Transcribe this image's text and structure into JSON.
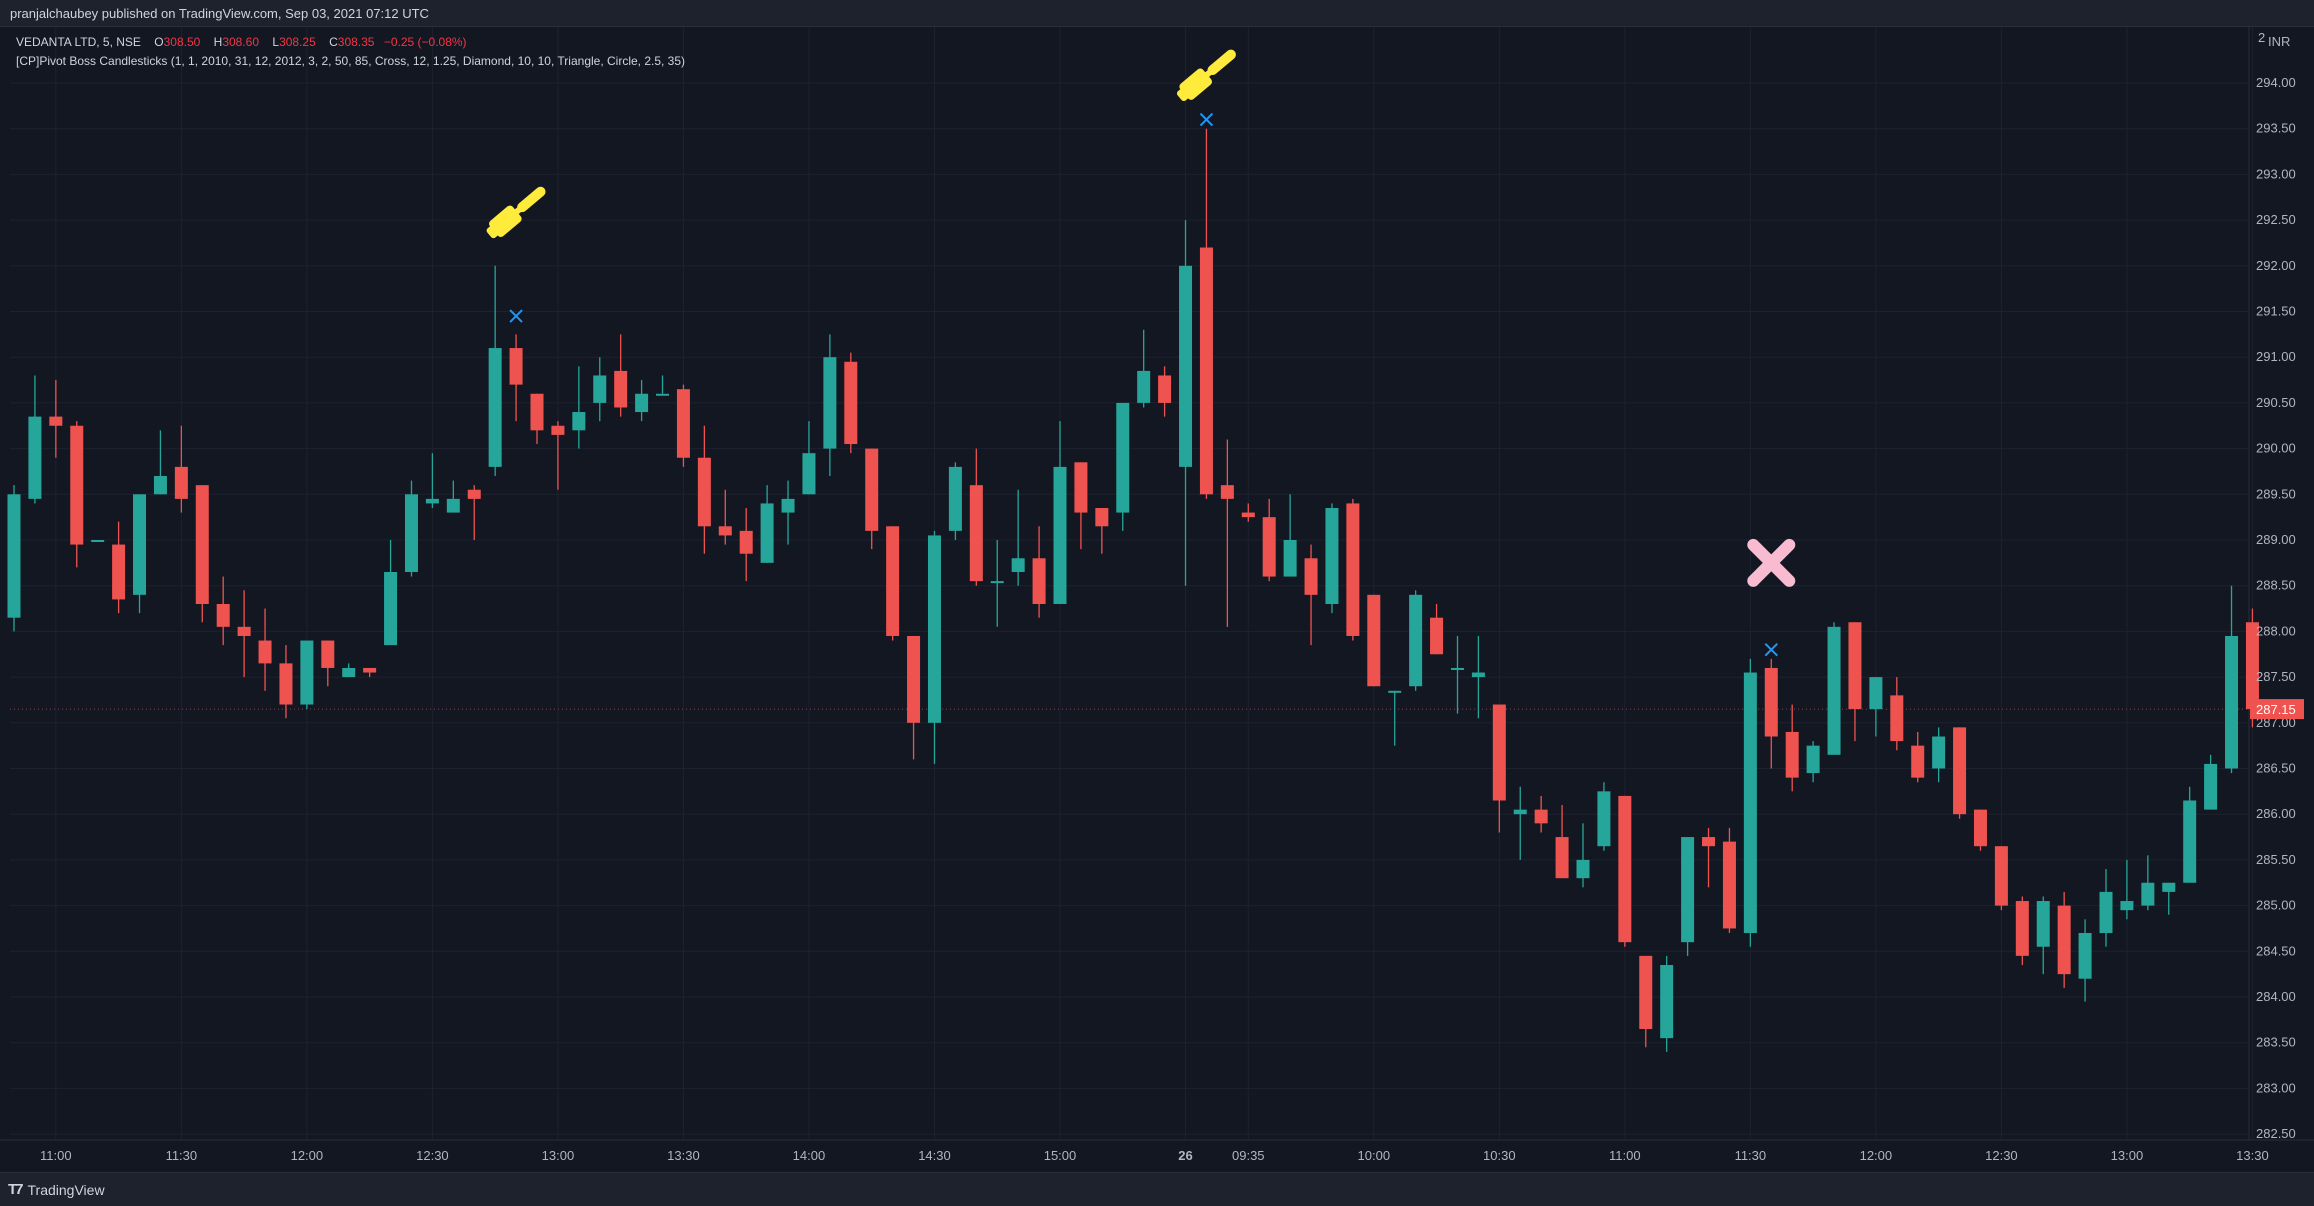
{
  "header": {
    "published_by": "pranjalchaubey published on TradingView.com, Sep 03, 2021 07:12 UTC"
  },
  "legend": {
    "symbol": "VEDANTA LTD, 5, NSE",
    "o_label": "O",
    "o_value": "308.50",
    "h_label": "H",
    "h_value": "308.60",
    "l_label": "L",
    "l_value": "308.25",
    "c_label": "C",
    "c_value": "308.35",
    "change": "−0.25 (−0.08%)",
    "indicator": "[CP]Pivot Boss Candlesticks (1, 1, 2010, 31, 12, 2012, 3, 2, 50, 85, Cross, 12, 1.25, Diamond, 10, 10, Triangle, Circle, 2.5, 35)"
  },
  "footer": {
    "brand": "TradingView"
  },
  "colors": {
    "background": "#131722",
    "grid": "#1e2230",
    "up": "#26a69a",
    "down": "#ef5350",
    "cross_marker": "#2196f3",
    "hammer": "#ffeb3b",
    "x_mark": "#f8bbd0",
    "price_tag": "#ef5350"
  },
  "chart_data": {
    "type": "candlestick",
    "currency": "INR",
    "currency_partial_top": "2",
    "last_price_label": "287.15",
    "last_price": 287.15,
    "y_ticks": [
      "294.00",
      "293.50",
      "293.00",
      "292.50",
      "292.00",
      "291.50",
      "291.00",
      "290.50",
      "290.00",
      "289.50",
      "289.00",
      "288.50",
      "288.00",
      "287.50",
      "287.00",
      "286.50",
      "286.00",
      "285.50",
      "285.00",
      "284.50",
      "284.00",
      "283.50",
      "283.00",
      "282.50"
    ],
    "ylim": [
      282.45,
      294.55
    ],
    "x_ticks": [
      {
        "label": "11:00",
        "index": 2
      },
      {
        "label": "11:30",
        "index": 8
      },
      {
        "label": "12:00",
        "index": 14
      },
      {
        "label": "12:30",
        "index": 20
      },
      {
        "label": "13:00",
        "index": 26
      },
      {
        "label": "13:30",
        "index": 32
      },
      {
        "label": "14:00",
        "index": 38
      },
      {
        "label": "14:30",
        "index": 44
      },
      {
        "label": "15:00",
        "index": 50
      },
      {
        "label": "26",
        "index": 56,
        "bold": true
      },
      {
        "label": "09:35",
        "index": 59
      },
      {
        "label": "10:00",
        "index": 65
      },
      {
        "label": "10:30",
        "index": 71
      },
      {
        "label": "11:00",
        "index": 77
      },
      {
        "label": "11:30",
        "index": 83
      },
      {
        "label": "12:00",
        "index": 89
      },
      {
        "label": "12:30",
        "index": 95
      },
      {
        "label": "13:00",
        "index": 101
      },
      {
        "label": "13:30",
        "index": 107
      }
    ],
    "candles": [
      {
        "o": 288.15,
        "h": 289.6,
        "l": 288.0,
        "c": 289.5
      },
      {
        "o": 289.45,
        "h": 290.8,
        "l": 289.4,
        "c": 290.35
      },
      {
        "o": 290.35,
        "h": 290.75,
        "l": 289.9,
        "c": 290.25
      },
      {
        "o": 290.25,
        "h": 290.3,
        "l": 288.7,
        "c": 288.95
      },
      {
        "o": 289.0,
        "h": 289.0,
        "l": 289.0,
        "c": 289.0
      },
      {
        "o": 288.95,
        "h": 289.2,
        "l": 288.2,
        "c": 288.35
      },
      {
        "o": 288.4,
        "h": 289.5,
        "l": 288.2,
        "c": 289.5
      },
      {
        "o": 289.5,
        "h": 290.2,
        "l": 289.5,
        "c": 289.7
      },
      {
        "o": 289.8,
        "h": 290.25,
        "l": 289.3,
        "c": 289.45
      },
      {
        "o": 289.6,
        "h": 289.6,
        "l": 288.1,
        "c": 288.3
      },
      {
        "o": 288.3,
        "h": 288.6,
        "l": 287.85,
        "c": 288.05
      },
      {
        "o": 288.05,
        "h": 288.45,
        "l": 287.5,
        "c": 287.95
      },
      {
        "o": 287.9,
        "h": 288.25,
        "l": 287.35,
        "c": 287.65
      },
      {
        "o": 287.65,
        "h": 287.85,
        "l": 287.05,
        "c": 287.2
      },
      {
        "o": 287.2,
        "h": 287.9,
        "l": 287.15,
        "c": 287.9
      },
      {
        "o": 287.9,
        "h": 287.9,
        "l": 287.4,
        "c": 287.6
      },
      {
        "o": 287.5,
        "h": 287.65,
        "l": 287.5,
        "c": 287.6
      },
      {
        "o": 287.6,
        "h": 287.6,
        "l": 287.5,
        "c": 287.55
      },
      {
        "o": 287.85,
        "h": 289.0,
        "l": 287.85,
        "c": 288.65
      },
      {
        "o": 288.65,
        "h": 289.65,
        "l": 288.6,
        "c": 289.5
      },
      {
        "o": 289.4,
        "h": 289.95,
        "l": 289.35,
        "c": 289.45
      },
      {
        "o": 289.3,
        "h": 289.65,
        "l": 289.3,
        "c": 289.45
      },
      {
        "o": 289.55,
        "h": 289.6,
        "l": 289.0,
        "c": 289.45
      },
      {
        "o": 289.8,
        "h": 292.0,
        "l": 289.7,
        "c": 291.1
      },
      {
        "o": 291.1,
        "h": 291.25,
        "l": 290.3,
        "c": 290.7
      },
      {
        "o": 290.6,
        "h": 290.6,
        "l": 290.05,
        "c": 290.2
      },
      {
        "o": 290.25,
        "h": 290.3,
        "l": 289.55,
        "c": 290.15
      },
      {
        "o": 290.2,
        "h": 290.9,
        "l": 290.0,
        "c": 290.4
      },
      {
        "o": 290.5,
        "h": 291.0,
        "l": 290.3,
        "c": 290.8
      },
      {
        "o": 290.85,
        "h": 291.25,
        "l": 290.35,
        "c": 290.45
      },
      {
        "o": 290.4,
        "h": 290.75,
        "l": 290.3,
        "c": 290.6
      },
      {
        "o": 290.6,
        "h": 290.8,
        "l": 290.6,
        "c": 290.6
      },
      {
        "o": 290.65,
        "h": 290.7,
        "l": 289.8,
        "c": 289.9
      },
      {
        "o": 289.9,
        "h": 290.25,
        "l": 288.85,
        "c": 289.15
      },
      {
        "o": 289.15,
        "h": 289.55,
        "l": 288.95,
        "c": 289.05
      },
      {
        "o": 289.1,
        "h": 289.35,
        "l": 288.55,
        "c": 288.85
      },
      {
        "o": 288.75,
        "h": 289.6,
        "l": 288.75,
        "c": 289.4
      },
      {
        "o": 289.3,
        "h": 289.65,
        "l": 288.95,
        "c": 289.45
      },
      {
        "o": 289.5,
        "h": 290.3,
        "l": 289.5,
        "c": 289.95
      },
      {
        "o": 290.0,
        "h": 291.25,
        "l": 289.7,
        "c": 291.0
      },
      {
        "o": 290.95,
        "h": 291.05,
        "l": 289.95,
        "c": 290.05
      },
      {
        "o": 290.0,
        "h": 290.0,
        "l": 288.9,
        "c": 289.1
      },
      {
        "o": 289.15,
        "h": 289.15,
        "l": 287.9,
        "c": 287.95
      },
      {
        "o": 287.95,
        "h": 287.95,
        "l": 286.6,
        "c": 287.0
      },
      {
        "o": 287.0,
        "h": 289.1,
        "l": 286.55,
        "c": 289.05
      },
      {
        "o": 289.1,
        "h": 289.85,
        "l": 289.0,
        "c": 289.8
      },
      {
        "o": 289.6,
        "h": 290.0,
        "l": 288.5,
        "c": 288.55
      },
      {
        "o": 288.55,
        "h": 289.0,
        "l": 288.05,
        "c": 288.55
      },
      {
        "o": 288.65,
        "h": 289.55,
        "l": 288.5,
        "c": 288.8
      },
      {
        "o": 288.8,
        "h": 289.15,
        "l": 288.15,
        "c": 288.3
      },
      {
        "o": 288.3,
        "h": 290.3,
        "l": 288.3,
        "c": 289.8
      },
      {
        "o": 289.85,
        "h": 289.85,
        "l": 288.9,
        "c": 289.3
      },
      {
        "o": 289.35,
        "h": 289.35,
        "l": 288.85,
        "c": 289.15
      },
      {
        "o": 289.3,
        "h": 290.5,
        "l": 289.1,
        "c": 290.5
      },
      {
        "o": 290.5,
        "h": 291.3,
        "l": 290.45,
        "c": 290.85
      },
      {
        "o": 290.8,
        "h": 290.9,
        "l": 290.35,
        "c": 290.5
      },
      {
        "o": 289.8,
        "h": 292.5,
        "l": 288.5,
        "c": 292.0
      },
      {
        "o": 292.2,
        "h": 293.5,
        "l": 289.45,
        "c": 289.5
      },
      {
        "o": 289.6,
        "h": 290.1,
        "l": 288.05,
        "c": 289.45
      },
      {
        "o": 289.3,
        "h": 289.4,
        "l": 289.2,
        "c": 289.25
      },
      {
        "o": 289.25,
        "h": 289.45,
        "l": 288.55,
        "c": 288.6
      },
      {
        "o": 288.6,
        "h": 289.5,
        "l": 288.6,
        "c": 289.0
      },
      {
        "o": 288.8,
        "h": 288.95,
        "l": 287.85,
        "c": 288.4
      },
      {
        "o": 288.3,
        "h": 289.4,
        "l": 288.2,
        "c": 289.35
      },
      {
        "o": 289.4,
        "h": 289.45,
        "l": 287.9,
        "c": 287.95
      },
      {
        "o": 288.4,
        "h": 288.4,
        "l": 287.4,
        "c": 287.4
      },
      {
        "o": 287.35,
        "h": 287.35,
        "l": 286.75,
        "c": 287.35
      },
      {
        "o": 287.4,
        "h": 288.45,
        "l": 287.35,
        "c": 288.4
      },
      {
        "o": 288.15,
        "h": 288.3,
        "l": 287.75,
        "c": 287.75
      },
      {
        "o": 287.6,
        "h": 287.95,
        "l": 287.1,
        "c": 287.6
      },
      {
        "o": 287.5,
        "h": 287.95,
        "l": 287.05,
        "c": 287.55
      },
      {
        "o": 287.2,
        "h": 287.2,
        "l": 285.8,
        "c": 286.15
      },
      {
        "o": 286.0,
        "h": 286.3,
        "l": 285.5,
        "c": 286.05
      },
      {
        "o": 286.05,
        "h": 286.2,
        "l": 285.8,
        "c": 285.9
      },
      {
        "o": 285.75,
        "h": 286.1,
        "l": 285.3,
        "c": 285.3
      },
      {
        "o": 285.3,
        "h": 285.9,
        "l": 285.2,
        "c": 285.5
      },
      {
        "o": 285.65,
        "h": 286.35,
        "l": 285.6,
        "c": 286.25
      },
      {
        "o": 286.2,
        "h": 286.2,
        "l": 284.55,
        "c": 284.6
      },
      {
        "o": 284.45,
        "h": 284.45,
        "l": 283.45,
        "c": 283.65
      },
      {
        "o": 283.55,
        "h": 284.45,
        "l": 283.4,
        "c": 284.35
      },
      {
        "o": 284.6,
        "h": 285.75,
        "l": 284.45,
        "c": 285.75
      },
      {
        "o": 285.75,
        "h": 285.85,
        "l": 285.2,
        "c": 285.65
      },
      {
        "o": 285.7,
        "h": 285.85,
        "l": 284.7,
        "c": 284.75
      },
      {
        "o": 284.7,
        "h": 287.7,
        "l": 284.55,
        "c": 287.55
      },
      {
        "o": 287.6,
        "h": 287.7,
        "l": 286.5,
        "c": 286.85
      },
      {
        "o": 286.9,
        "h": 287.2,
        "l": 286.25,
        "c": 286.4
      },
      {
        "o": 286.45,
        "h": 286.8,
        "l": 286.35,
        "c": 286.75
      },
      {
        "o": 286.65,
        "h": 288.1,
        "l": 286.65,
        "c": 288.05
      },
      {
        "o": 288.1,
        "h": 288.1,
        "l": 286.8,
        "c": 287.15
      },
      {
        "o": 287.15,
        "h": 287.5,
        "l": 286.85,
        "c": 287.5
      },
      {
        "o": 287.3,
        "h": 287.5,
        "l": 286.7,
        "c": 286.8
      },
      {
        "o": 286.75,
        "h": 286.9,
        "l": 286.35,
        "c": 286.4
      },
      {
        "o": 286.5,
        "h": 286.95,
        "l": 286.35,
        "c": 286.85
      },
      {
        "o": 286.95,
        "h": 286.95,
        "l": 285.95,
        "c": 286.0
      },
      {
        "o": 286.05,
        "h": 286.05,
        "l": 285.6,
        "c": 285.65
      },
      {
        "o": 285.65,
        "h": 285.65,
        "l": 284.95,
        "c": 285.0
      },
      {
        "o": 285.05,
        "h": 285.1,
        "l": 284.35,
        "c": 284.45
      },
      {
        "o": 284.55,
        "h": 285.1,
        "l": 284.25,
        "c": 285.05
      },
      {
        "o": 285.0,
        "h": 285.15,
        "l": 284.1,
        "c": 284.25
      },
      {
        "o": 284.2,
        "h": 284.85,
        "l": 283.95,
        "c": 284.7
      },
      {
        "o": 284.7,
        "h": 285.4,
        "l": 284.55,
        "c": 285.15
      },
      {
        "o": 284.95,
        "h": 285.5,
        "l": 284.85,
        "c": 285.05
      },
      {
        "o": 285.0,
        "h": 285.55,
        "l": 284.95,
        "c": 285.25
      },
      {
        "o": 285.15,
        "h": 285.2,
        "l": 284.9,
        "c": 285.25
      },
      {
        "o": 285.25,
        "h": 286.3,
        "l": 285.25,
        "c": 286.15
      },
      {
        "o": 286.05,
        "h": 286.65,
        "l": 286.05,
        "c": 286.55
      },
      {
        "o": 286.5,
        "h": 288.5,
        "l": 286.45,
        "c": 287.95
      },
      {
        "o": 288.1,
        "h": 288.25,
        "l": 286.95,
        "c": 287.15
      }
    ],
    "cross_markers": [
      {
        "index": 24,
        "price": 291.45
      },
      {
        "index": 57,
        "price": 293.6
      },
      {
        "index": 84,
        "price": 287.8
      }
    ],
    "hammer_markers": [
      {
        "index": 24,
        "price": 292.5
      },
      {
        "index": 57,
        "price": 294.0
      }
    ],
    "x_markers": [
      {
        "index": 84,
        "price": 288.75
      }
    ]
  }
}
